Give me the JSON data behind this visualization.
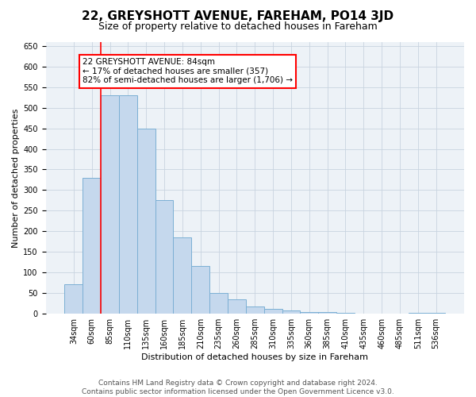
{
  "title": "22, GREYSHOTT AVENUE, FAREHAM, PO14 3JD",
  "subtitle": "Size of property relative to detached houses in Fareham",
  "xlabel": "Distribution of detached houses by size in Fareham",
  "ylabel": "Number of detached properties",
  "categories": [
    "34sqm",
    "60sqm",
    "85sqm",
    "110sqm",
    "135sqm",
    "160sqm",
    "185sqm",
    "210sqm",
    "235sqm",
    "260sqm",
    "285sqm",
    "310sqm",
    "335sqm",
    "360sqm",
    "385sqm",
    "410sqm",
    "435sqm",
    "460sqm",
    "485sqm",
    "511sqm",
    "536sqm"
  ],
  "values": [
    72,
    330,
    530,
    530,
    450,
    275,
    185,
    115,
    50,
    35,
    18,
    12,
    8,
    5,
    4,
    2,
    1,
    1,
    0,
    2,
    3
  ],
  "bar_color": "#c5d8ed",
  "bar_edge_color": "#7bafd4",
  "annotation_line_bin": 1.5,
  "annotation_box_text": "22 GREYSHOTT AVENUE: 84sqm\n← 17% of detached houses are smaller (357)\n82% of semi-detached houses are larger (1,706) →",
  "annotation_box_color": "white",
  "annotation_box_edge_color": "red",
  "ylim": [
    0,
    660
  ],
  "yticks": [
    0,
    50,
    100,
    150,
    200,
    250,
    300,
    350,
    400,
    450,
    500,
    550,
    600,
    650
  ],
  "grid_color": "#c8d4e0",
  "background_color": "#edf2f7",
  "footer_text": "Contains HM Land Registry data © Crown copyright and database right 2024.\nContains public sector information licensed under the Open Government Licence v3.0.",
  "title_fontsize": 11,
  "subtitle_fontsize": 9,
  "axis_label_fontsize": 8,
  "tick_fontsize": 7,
  "footer_fontsize": 6.5,
  "annot_fontsize": 7.5
}
